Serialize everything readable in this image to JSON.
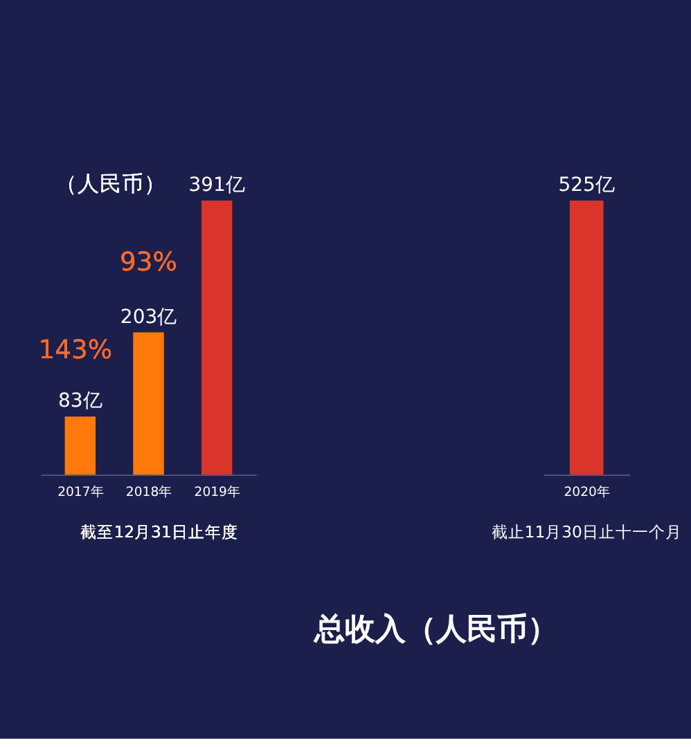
{
  "chart_data": [
    {
      "type": "bar",
      "categories": [
        "2017年",
        "2018年",
        "2019年"
      ],
      "values": [
        83,
        203,
        391
      ],
      "colors": [
        "#ff7a0a",
        "#ff7a0a",
        "#d9352b"
      ],
      "value_labels": [
        "83亿",
        "203亿",
        "391亿"
      ],
      "tick_labels": "x",
      "annotations": [
        "（人民币）",
        "143%",
        "93%",
        "截至12月31日止年度"
      ]
    },
    {
      "type": "bar",
      "categories": [
        "2020年"
      ],
      "values": [
        525
      ],
      "colors": [
        "#d9352b"
      ],
      "value_labels": [
        "525亿"
      ],
      "tick_labels": "x",
      "annotations": [
        "截止11月30日止十一个月",
        "总收入（人民币）"
      ]
    }
  ]
}
